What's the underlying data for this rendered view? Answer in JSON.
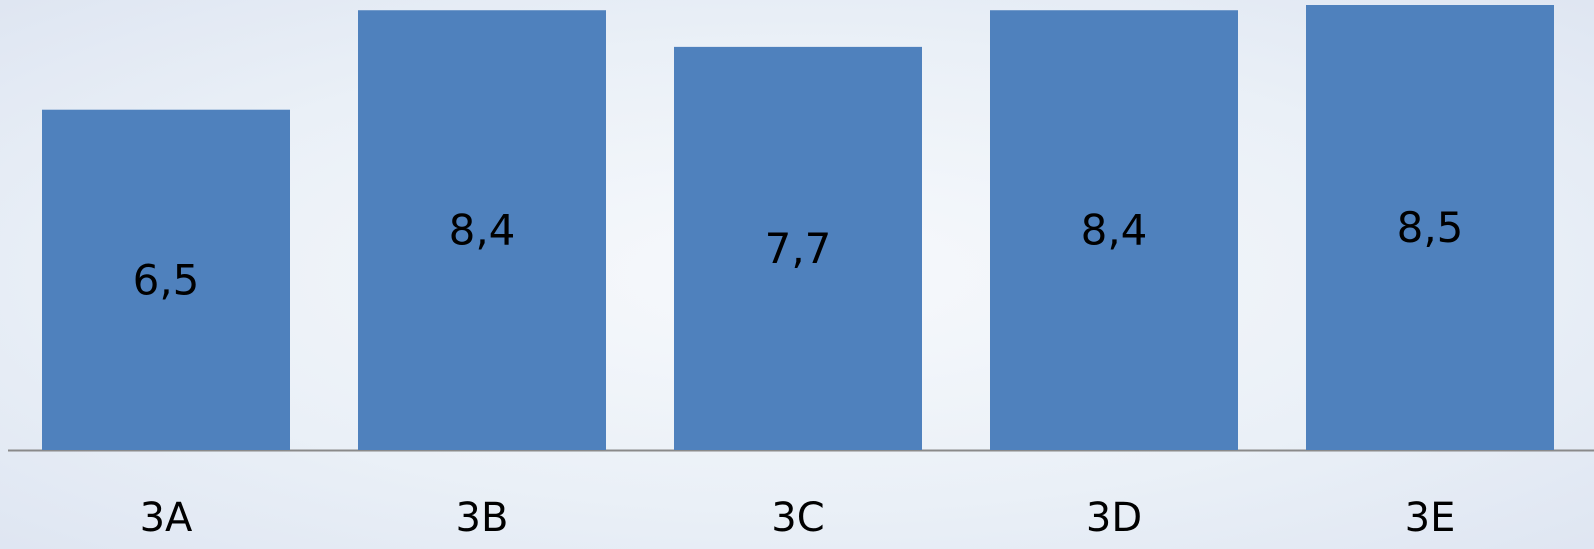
{
  "chart_data": {
    "type": "bar",
    "categories": [
      "3A",
      "3B",
      "3C",
      "3D",
      "3E"
    ],
    "values": [
      6.5,
      8.4,
      7.7,
      8.4,
      8.5
    ],
    "value_labels": [
      "6,5",
      "8,4",
      "7,7",
      "8,4",
      "8,5"
    ],
    "color": "#4f81bd",
    "ylim": [
      0,
      8.5
    ]
  }
}
